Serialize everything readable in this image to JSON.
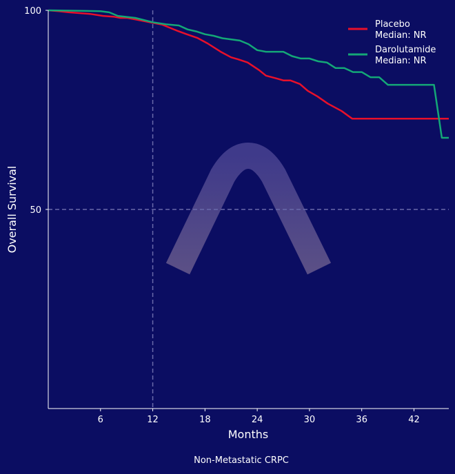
{
  "chart_data": {
    "type": "line",
    "subtitle": "Non-Metastatic CRPC",
    "xlabel": "Months",
    "ylabel": "Overall Survival",
    "xlim": [
      0,
      46
    ],
    "ylim": [
      0,
      100
    ],
    "xticks": [
      "6",
      "12",
      "18",
      "24",
      "30",
      "36",
      "42"
    ],
    "xtick_values": [
      6,
      12,
      18,
      24,
      30,
      36,
      42
    ],
    "yticks": [
      "50",
      "100"
    ],
    "ytick_values": [
      50,
      100
    ],
    "reference_lines": {
      "x": 12,
      "y": 50
    },
    "legend_position": "top-right",
    "grid": false,
    "series": [
      {
        "name": "Placebo",
        "label": "Median: NR",
        "color": "#e8102a",
        "x": [
          0,
          1.2,
          2.4,
          4.8,
          6.3,
          7.5,
          8.3,
          9.1,
          10.3,
          11.9,
          13.1,
          14.9,
          15.9,
          17.1,
          18.3,
          19.8,
          21.0,
          21.8,
          22.9,
          24.2,
          25.0,
          26.2,
          27.0,
          27.8,
          28.9,
          29.8,
          30.9,
          32.1,
          33.7,
          34.9,
          46
        ],
        "y": [
          100,
          99.8,
          99.5,
          99.1,
          98.6,
          98.4,
          98.1,
          98.1,
          97.6,
          96.9,
          96.4,
          94.8,
          94.0,
          93.1,
          91.7,
          89.6,
          88.2,
          87.7,
          86.9,
          85.0,
          83.6,
          82.9,
          82.4,
          82.4,
          81.5,
          79.8,
          78.4,
          76.6,
          74.7,
          72.8,
          72.8
        ]
      },
      {
        "name": "Darolutamide",
        "label": "Median: NR",
        "color": "#14a877",
        "x": [
          0,
          6,
          7,
          8,
          10,
          12,
          13.5,
          15,
          16,
          17,
          18,
          19,
          20,
          22,
          23,
          24,
          25,
          27,
          28,
          29,
          30,
          31,
          32,
          33,
          34,
          35,
          36,
          37,
          38,
          39,
          44.3,
          45.2,
          46
        ],
        "y": [
          100,
          99.8,
          99.5,
          98.6,
          98.1,
          97.0,
          96.5,
          96.2,
          95.2,
          94.7,
          94.0,
          93.6,
          93.0,
          92.4,
          91.5,
          90.0,
          89.6,
          89.6,
          88.5,
          87.9,
          87.9,
          87.2,
          86.9,
          85.5,
          85.5,
          84.5,
          84.5,
          83.2,
          83.2,
          81.3,
          81.3,
          68,
          68
        ]
      }
    ]
  }
}
